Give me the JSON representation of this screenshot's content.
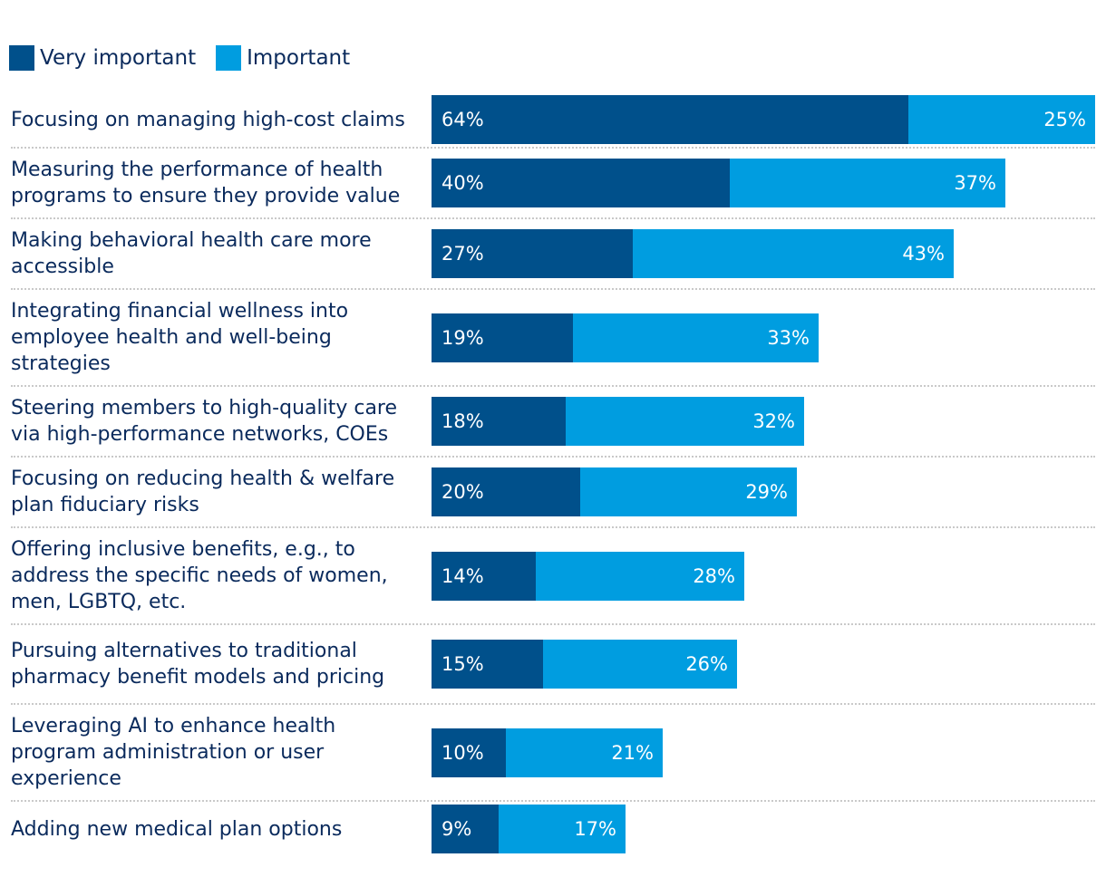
{
  "chart_data": {
    "type": "bar",
    "orientation": "horizontal",
    "stacked": true,
    "title": "",
    "xlabel": "",
    "ylabel": "",
    "xlim": [
      0,
      89
    ],
    "legend_position": "top-left",
    "categories": [
      "Focusing on managing high-cost claims",
      "Measuring the performance of health programs to ensure they provide value",
      "Making behavioral health care more accessible",
      "Integrating financial wellness into employee health and well-being strategies",
      "Steering members to high-quality care via high-performance networks, COEs",
      "Focusing on reducing health & welfare plan fiduciary risks",
      "Offering inclusive benefits, e.g., to address the specific needs of women, men, LGBTQ, etc.",
      "Pursuing alternatives to traditional pharmacy benefit models and pricing",
      "Leveraging AI to enhance health program administration or user experience",
      "Adding new medical plan options"
    ],
    "series": [
      {
        "name": "Very important",
        "color": "#00508b",
        "values": [
          64,
          40,
          27,
          19,
          18,
          20,
          14,
          15,
          10,
          9
        ]
      },
      {
        "name": "Important",
        "color": "#009de0",
        "values": [
          25,
          37,
          43,
          33,
          32,
          29,
          28,
          26,
          21,
          17
        ]
      }
    ],
    "value_suffix": "%"
  }
}
